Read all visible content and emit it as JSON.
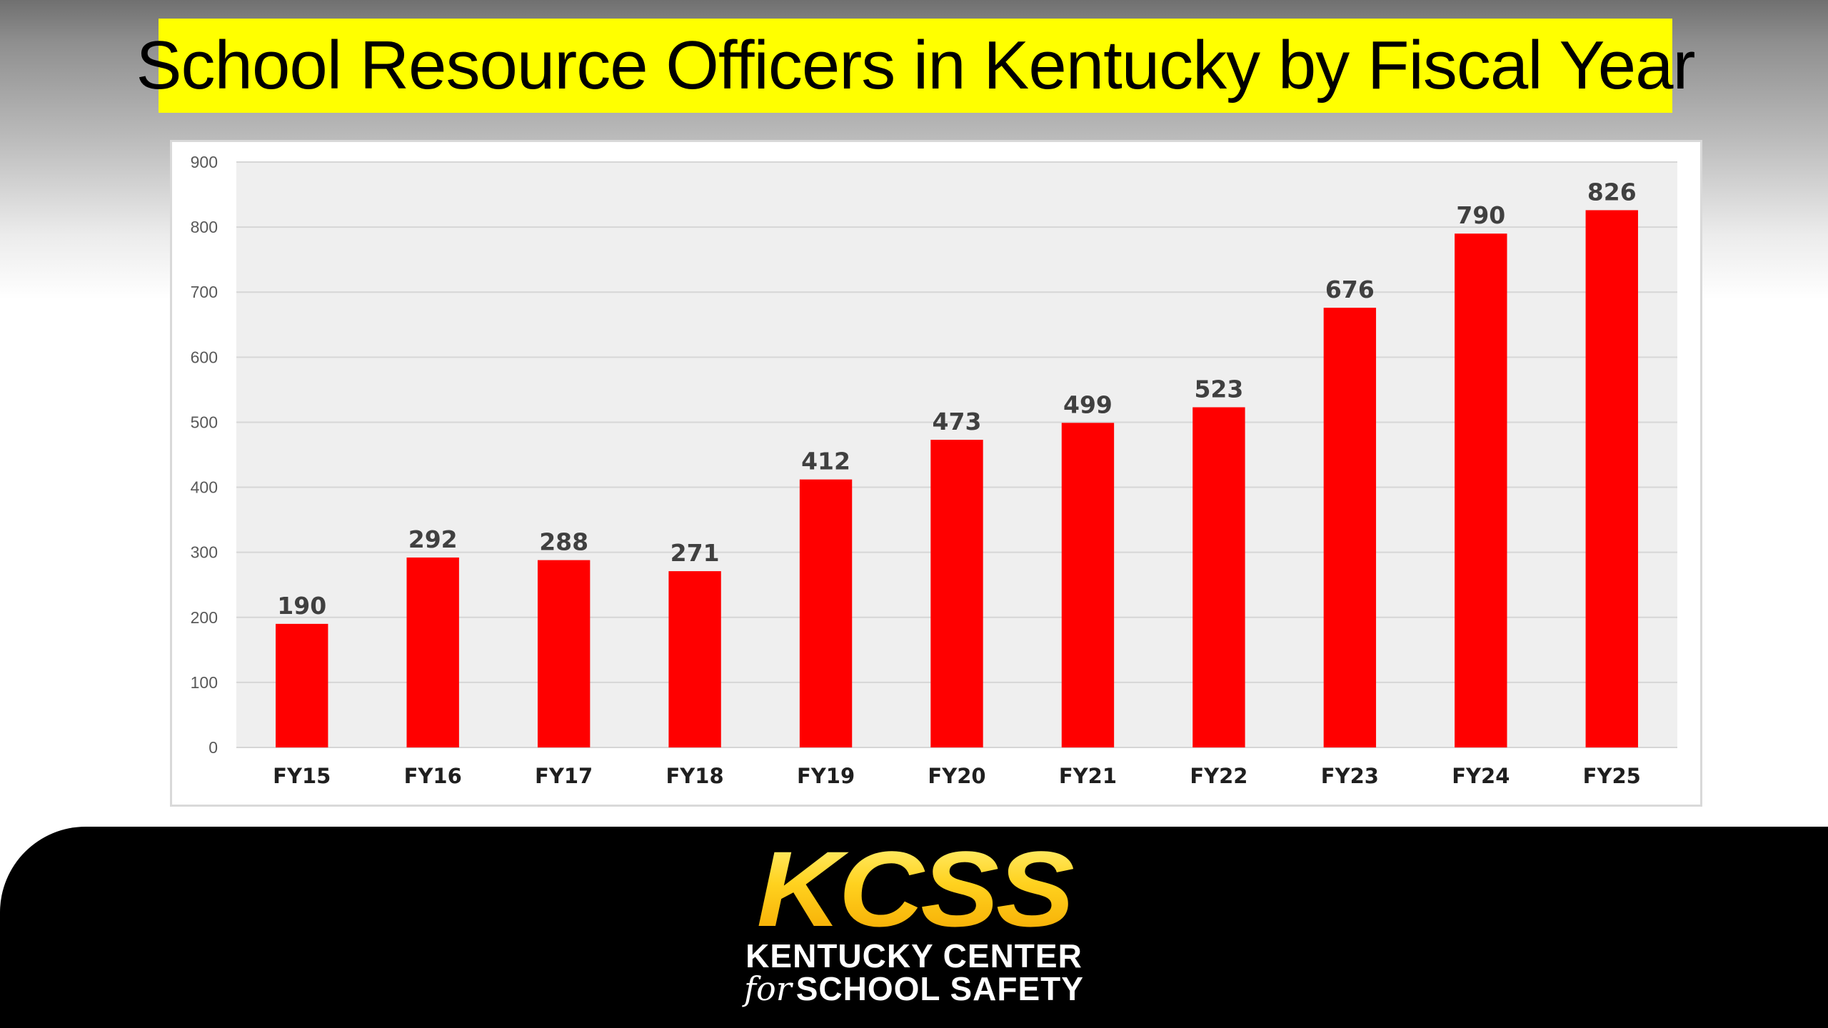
{
  "slide": {
    "title": "School Resource Officers in Kentucky by Fiscal Year",
    "title_highlight_color": "#ffff00"
  },
  "footer": {
    "logo_text": "KCSS",
    "org_line1": "KENTUCKY CENTER",
    "org_for": "for",
    "org_line2": "SCHOOL SAFETY"
  },
  "chart_data": {
    "type": "bar",
    "categories": [
      "FY15",
      "FY16",
      "FY17",
      "FY18",
      "FY19",
      "FY20",
      "FY21",
      "FY22",
      "FY23",
      "FY24",
      "FY25"
    ],
    "values": [
      190,
      292,
      288,
      271,
      412,
      473,
      499,
      523,
      676,
      790,
      826
    ],
    "ylim": [
      0,
      900
    ],
    "yticks": [
      0,
      100,
      200,
      300,
      400,
      500,
      600,
      700,
      800,
      900
    ],
    "bar_color": "#ff0000",
    "grid": true,
    "data_labels": true
  }
}
